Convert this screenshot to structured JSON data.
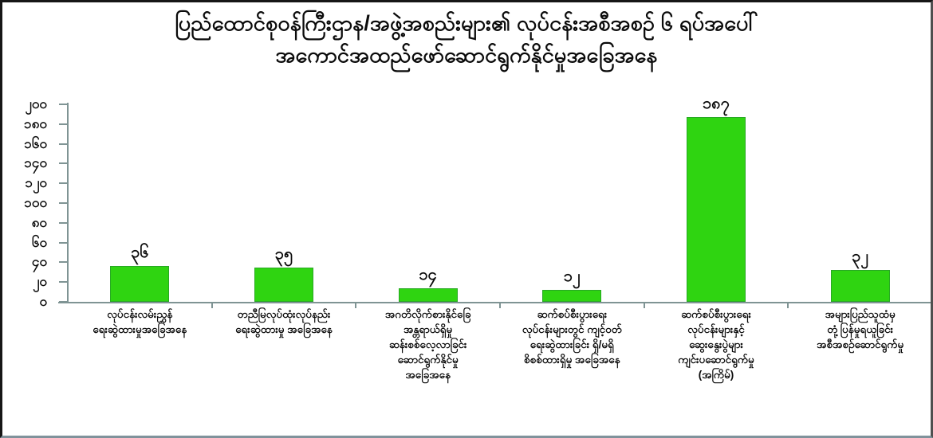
{
  "title": {
    "line1": "ပြည်ထောင်စုဝန်ကြီးဌာန/အဖွဲ့အစည်းများ၏ လုပ်ငန်းအစီအစဉ် ၆ ရပ်အပေါ်",
    "line2": "အကောင်အထည်ဖော်ဆောင်ရွက်နိုင်မှုအခြေအနေ"
  },
  "chart_data": {
    "type": "bar",
    "title": "ပြည်ထောင်စုဝန်ကြီးဌာန/အဖွဲ့အစည်းများ၏ လုပ်ငန်းအစီအစဉ် ၆ ရပ်အပေါ် အကောင်အထည်ဖော်ဆောင်ရွက်နိုင်မှုအခြေအနေ",
    "numeral_system": "myanmar",
    "values": [
      36,
      35,
      14,
      12,
      187,
      32
    ],
    "value_labels": [
      "၃၆",
      "၃၅",
      "၁၄",
      "၁၂",
      "၁၈၇",
      "၃၂"
    ],
    "categories": [
      "လုပ်ငန်းလမ်းညွှန် ရေးဆွဲထားမှုအခြေအနေ",
      "တညီမြလုပ်ထုံးလုပ်နည်း ရေးဆွဲထားမှု အခြေအနေ",
      "အဂတိလိုက်စားနိုင်ခြေ အန္တရာယ်ရှိမှု ဆန်းစစ်လေ့လာခြင်း ဆောင်ရွက်နိုင်မှု အခြေအနေ",
      "ဆက်စပ်စီးပွားရေး လုပ်ငန်းများတွင် ကျင့်ဝတ် ရေးဆွဲထားခြင်း ရှိ/မရှိ စိစစ်ထားရှိမှု အခြေအနေ",
      "ဆက်စပ်စီးပွားရေး လုပ်ငန်းများနှင့် ဆွေးနွေးပွဲများ ကျင်းပဆောင်ရွက်မှု (အကြိမ်)",
      "အများပြည်သူထံမှ တုံ့ပြန်မှုရယူခြင်း အစီအစဉ်ဆောင်ရွက်မှု"
    ],
    "categories_lines": [
      [
        "လုပ်ငန်းလမ်းညွှန်",
        "ရေးဆွဲထားမှုအခြေအနေ"
      ],
      [
        "တညီမြလုပ်ထုံးလုပ်နည်း",
        "ရေးဆွဲထားမှု အခြေအနေ"
      ],
      [
        "အဂတိလိုက်စားနိုင်ခြေ",
        "အန္တရာယ်ရှိမှု",
        "ဆန်းစစ်လေ့လာခြင်း",
        "ဆောင်ရွက်နိုင်မှု",
        "အခြေအနေ"
      ],
      [
        "ဆက်စပ်စီးပွားရေး",
        "လုပ်ငန်းများတွင် ကျင့်ဝတ်",
        "ရေးဆွဲထားခြင်း ရှိ/မရှိ",
        "စိစစ်ထားရှိမှု အခြေအနေ"
      ],
      [
        "ဆက်စပ်စီးပွားရေး",
        "လုပ်ငန်းများနှင့်",
        "ဆွေးနွေးပွဲများ",
        "ကျင်းပဆောင်ရွက်မှု",
        "(အကြိမ်)"
      ],
      [
        "အများပြည်သူထံမှ",
        "တုံ့ပြန်မှုရယူခြင်း",
        "အစီအစဉ်ဆောင်ရွက်မှု"
      ]
    ],
    "xlabel": "",
    "ylabel": "",
    "ylim": [
      0,
      200
    ],
    "y_tick_values": [
      0,
      20,
      40,
      60,
      80,
      100,
      120,
      140,
      160,
      180,
      200
    ],
    "y_tick_labels": [
      "၀",
      "၂၀",
      "၄၀",
      "၆၀",
      "၈၀",
      "၁၀၀",
      "၁၂၀",
      "၁၄၀",
      "၁၆၀",
      "၁၈၀",
      "၂၀၀"
    ],
    "grid": false,
    "legend_position": "none",
    "bar_color": "#2fd411",
    "bar_border_color": "#28a824",
    "axis_color": "#7f9494",
    "text_color": "#0b0b0b"
  }
}
